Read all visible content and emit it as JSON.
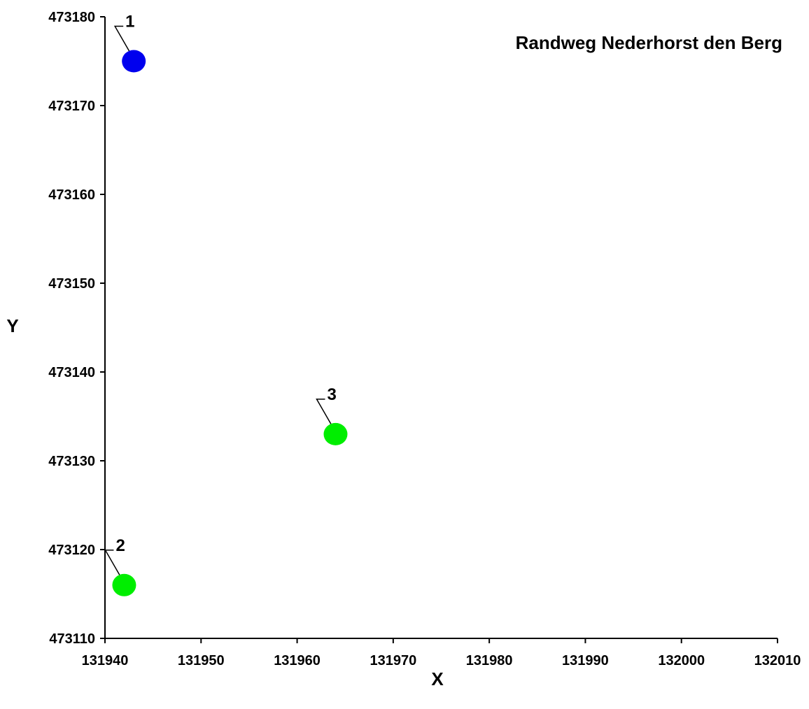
{
  "chart_data": {
    "type": "scatter",
    "title": "Randweg Nederhorst den Berg",
    "xlabel": "X",
    "ylabel": "Y",
    "xlim": [
      131940,
      132010
    ],
    "ylim": [
      473110,
      473180
    ],
    "x_ticks": [
      "131940",
      "131950",
      "131960",
      "131970",
      "131980",
      "131990",
      "132000",
      "132010"
    ],
    "y_ticks": [
      "473180",
      "473170",
      "473160",
      "473150",
      "473140",
      "473130",
      "473120",
      "473110"
    ],
    "grid": false,
    "points": [
      {
        "label": "1",
        "x": 131943,
        "y": 473175,
        "color": "#0000ee"
      },
      {
        "label": "2",
        "x": 131942,
        "y": 473116,
        "color": "#00ee00"
      },
      {
        "label": "3",
        "x": 131964,
        "y": 473133,
        "color": "#00ee00"
      }
    ]
  }
}
